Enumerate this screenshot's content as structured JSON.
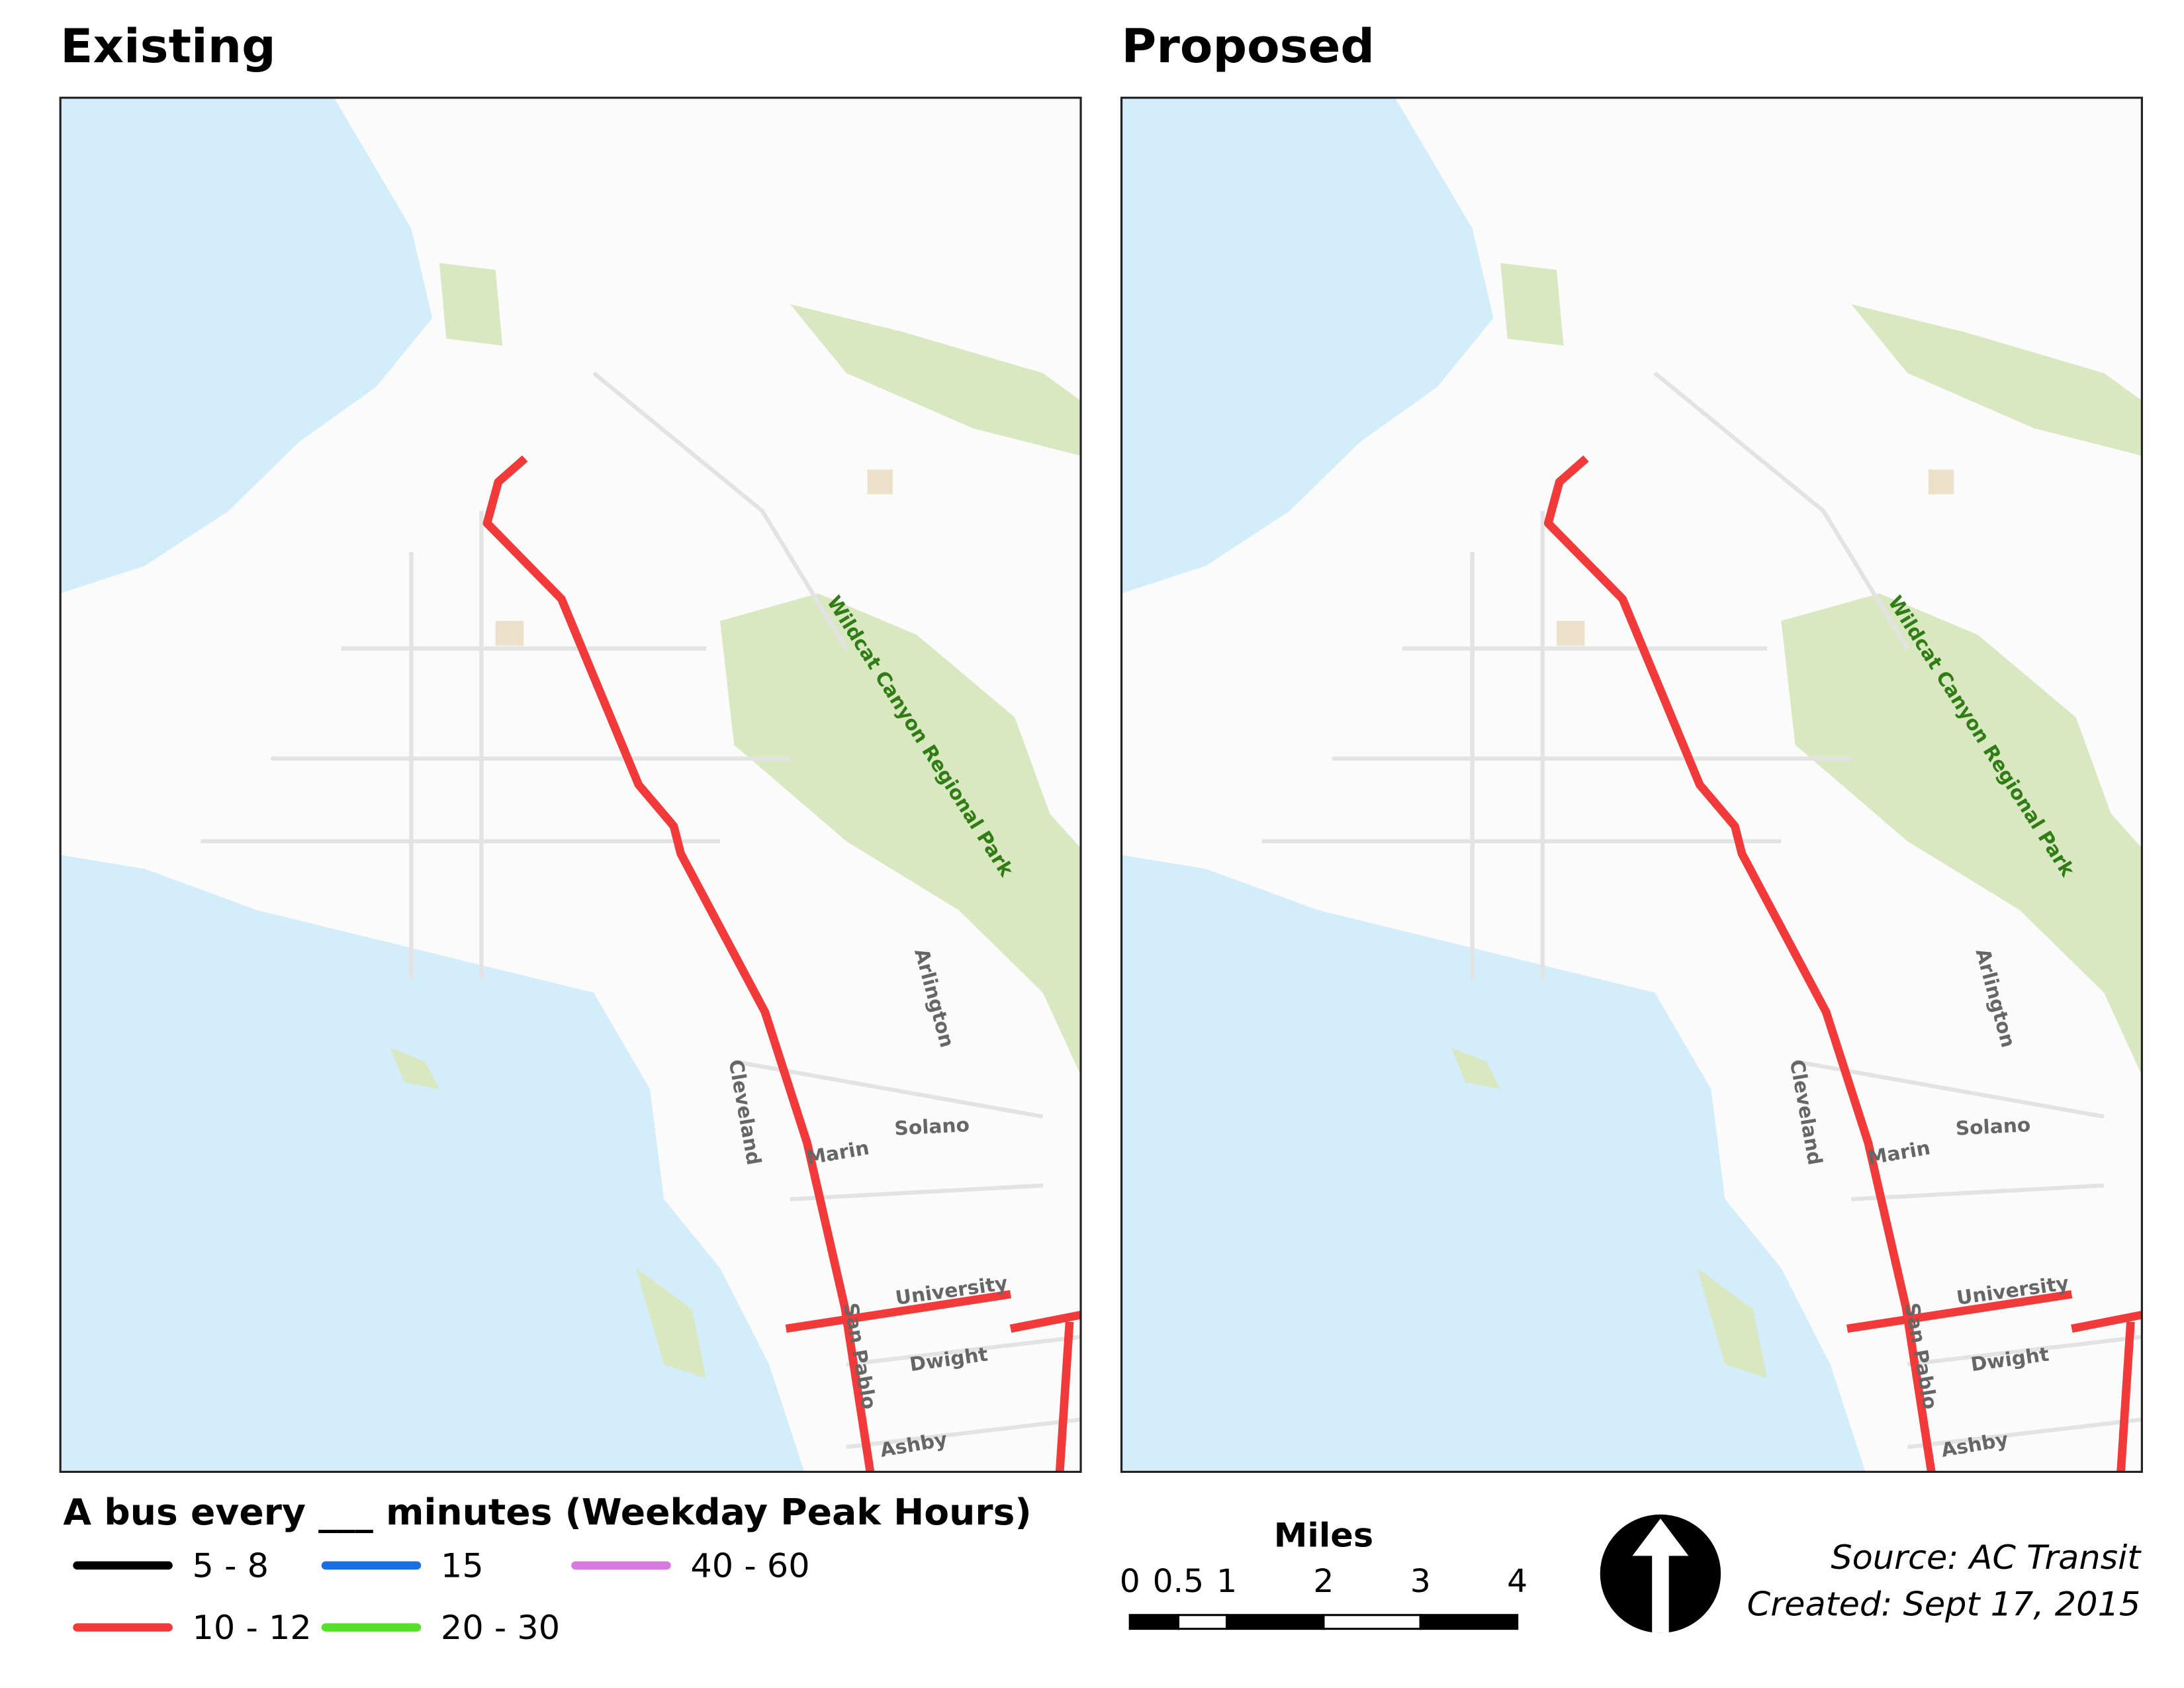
{
  "panels": [
    {
      "title": "Existing",
      "labels": [
        "Wildcat Canyon Regional Park",
        "Arlington",
        "Cleveland",
        "Solano",
        "Marin",
        "University",
        "San Pablo",
        "Dwight",
        "Ashby"
      ]
    },
    {
      "title": "Proposed",
      "labels": [
        "Wildcat Canyon Regional Park",
        "Arlington",
        "Cleveland",
        "Solano",
        "Marin",
        "University",
        "San Pablo",
        "Dwight",
        "Ashby"
      ]
    }
  ],
  "legend": {
    "title": "A bus every ___ minutes (Weekday Peak Hours)",
    "items": [
      {
        "label": "5 - 8",
        "color": "#000000"
      },
      {
        "label": "15",
        "color": "#1a6fe0"
      },
      {
        "label": "40 - 60",
        "color": "#d77be0"
      },
      {
        "label": "10 - 12",
        "color": "#f23a3a"
      },
      {
        "label": "20 - 30",
        "color": "#57e02a"
      }
    ]
  },
  "scale": {
    "title": "Miles",
    "ticks": [
      0,
      0.5,
      1,
      2,
      3,
      4
    ]
  },
  "source": "Source: AC Transit",
  "created": "Created: Sept 17, 2015"
}
